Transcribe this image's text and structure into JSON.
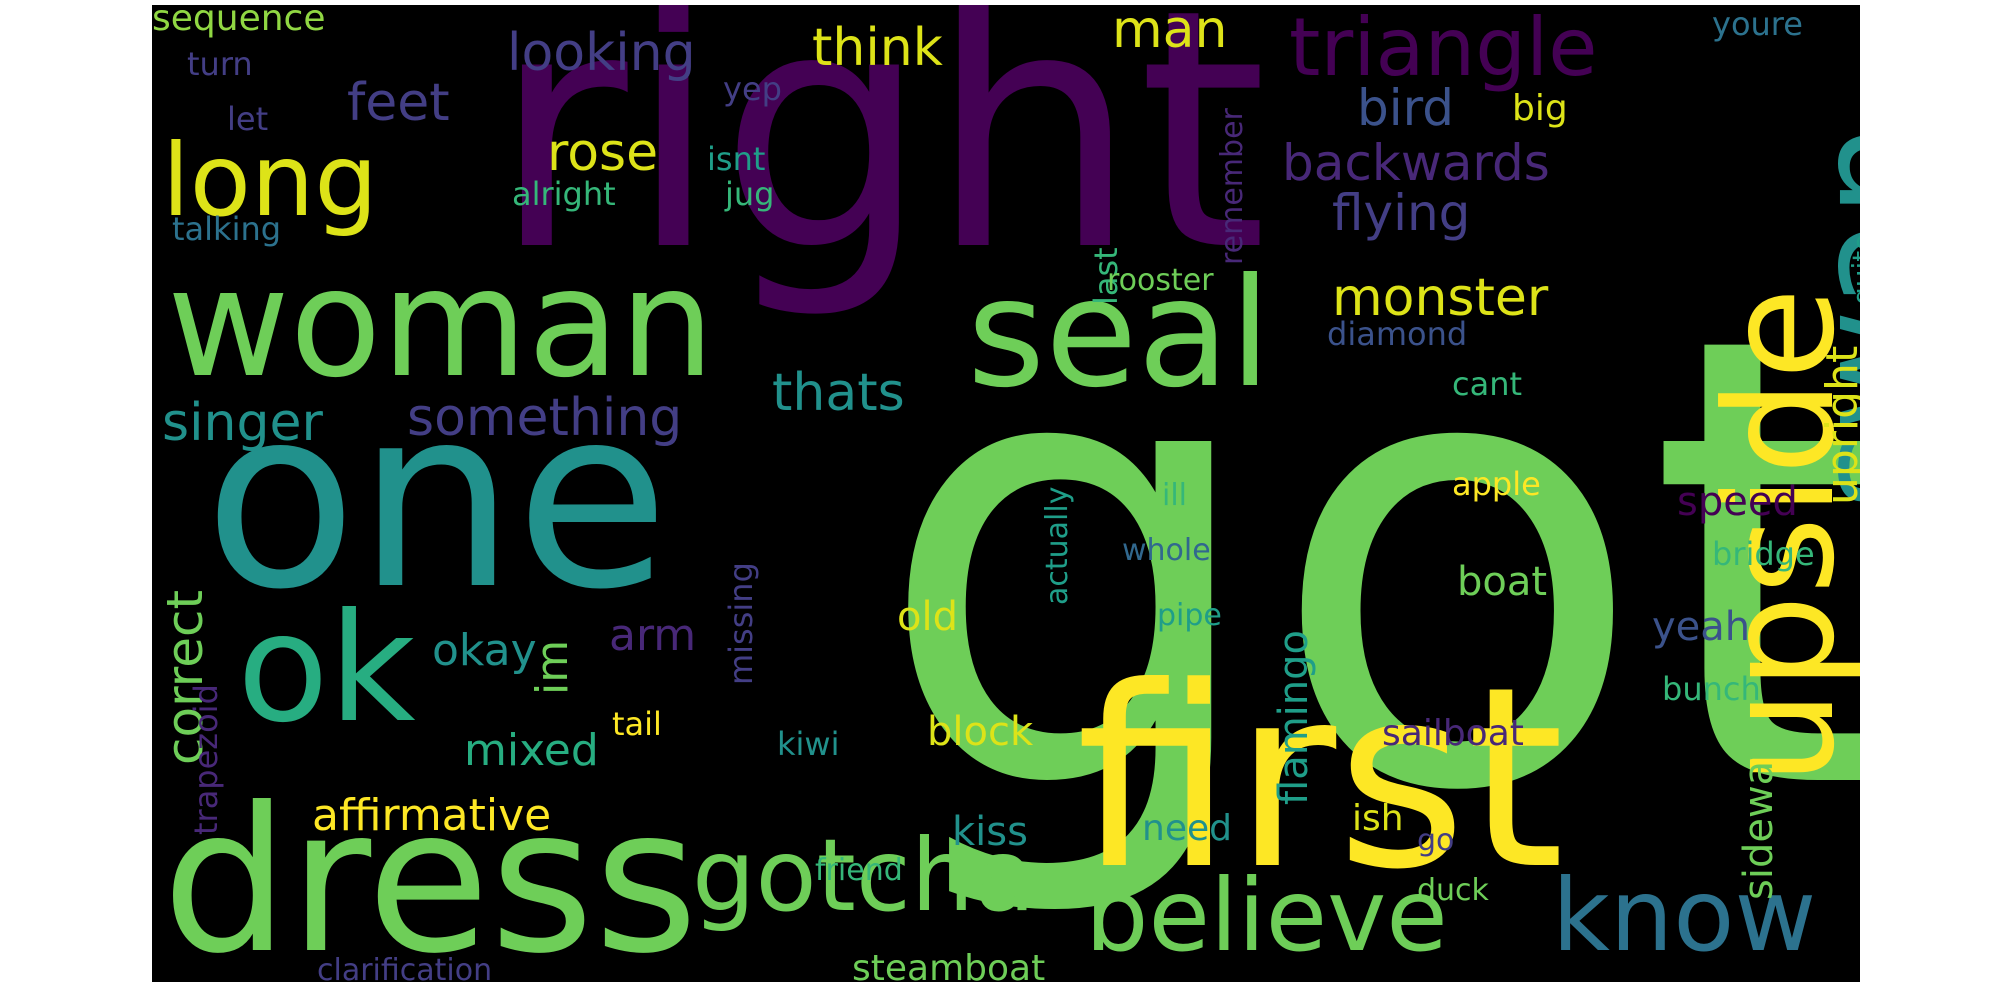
{
  "colors": {
    "background": "#000000",
    "page": "#ffffff",
    "palette": {
      "purple": "#440154",
      "indigo": "#482878",
      "violet": "#433e85",
      "blue": "#3b528b",
      "slate": "#31688e",
      "steel": "#2c728e",
      "teal": "#21918c",
      "sea": "#1f9e89",
      "jade": "#27ad81",
      "mint": "#35b779",
      "green": "#6ece58",
      "lime": "#90d743",
      "yellow": "#dde318",
      "gold": "#fde725"
    }
  },
  "words": [
    {
      "text": "got",
      "color": "green"
    },
    {
      "text": "right",
      "color": "purple"
    },
    {
      "text": "one",
      "color": "teal"
    },
    {
      "text": "first",
      "color": "gold"
    },
    {
      "text": "dress",
      "color": "green"
    },
    {
      "text": "woman",
      "color": "green"
    },
    {
      "text": "upside",
      "color": "gold"
    },
    {
      "text": "swan",
      "color": "teal"
    },
    {
      "text": "ok",
      "color": "jade"
    },
    {
      "text": "seal",
      "color": "green"
    },
    {
      "text": "long",
      "color": "yellow"
    },
    {
      "text": "gotcha",
      "color": "green"
    },
    {
      "text": "believe",
      "color": "green"
    },
    {
      "text": "know",
      "color": "steel"
    },
    {
      "text": "triangle",
      "color": "purple"
    },
    {
      "text": "looking",
      "color": "violet"
    },
    {
      "text": "think",
      "color": "yellow"
    },
    {
      "text": "man",
      "color": "yellow"
    },
    {
      "text": "sequence",
      "color": "lime"
    },
    {
      "text": "feet",
      "color": "violet"
    },
    {
      "text": "bird",
      "color": "blue"
    },
    {
      "text": "big",
      "color": "yellow"
    },
    {
      "text": "rose",
      "color": "yellow"
    },
    {
      "text": "backwards",
      "color": "indigo"
    },
    {
      "text": "flying",
      "color": "violet"
    },
    {
      "text": "monster",
      "color": "yellow"
    },
    {
      "text": "thats",
      "color": "teal"
    },
    {
      "text": "singer",
      "color": "teal"
    },
    {
      "text": "something",
      "color": "violet"
    },
    {
      "text": "upright",
      "color": "yellow"
    },
    {
      "text": "quite",
      "color": "sea"
    },
    {
      "text": "youre",
      "color": "steel"
    },
    {
      "text": "turn",
      "color": "violet"
    },
    {
      "text": "let",
      "color": "violet"
    },
    {
      "text": "yep",
      "color": "violet"
    },
    {
      "text": "isnt",
      "color": "sea"
    },
    {
      "text": "alright",
      "color": "mint"
    },
    {
      "text": "jug",
      "color": "mint"
    },
    {
      "text": "talking",
      "color": "steel"
    },
    {
      "text": "remember",
      "color": "indigo"
    },
    {
      "text": "last",
      "color": "mint"
    },
    {
      "text": "rooster",
      "color": "green"
    },
    {
      "text": "diamond",
      "color": "blue"
    },
    {
      "text": "cant",
      "color": "mint"
    },
    {
      "text": "apple",
      "color": "gold"
    },
    {
      "text": "speed",
      "color": "purple"
    },
    {
      "text": "bridge",
      "color": "mint"
    },
    {
      "text": "flamingo",
      "color": "sea"
    },
    {
      "text": "correct",
      "color": "green"
    },
    {
      "text": "okay",
      "color": "teal"
    },
    {
      "text": "im",
      "color": "green"
    },
    {
      "text": "arm",
      "color": "indigo"
    },
    {
      "text": "mixed",
      "color": "jade"
    },
    {
      "text": "affirmative",
      "color": "gold"
    },
    {
      "text": "trapezoid",
      "color": "indigo"
    },
    {
      "text": "missing",
      "color": "violet"
    },
    {
      "text": "actually",
      "color": "sea"
    },
    {
      "text": "ill",
      "color": "mint"
    },
    {
      "text": "whole",
      "color": "slate"
    },
    {
      "text": "pipe",
      "color": "sea"
    },
    {
      "text": "old",
      "color": "yellow"
    },
    {
      "text": "boat",
      "color": "green"
    },
    {
      "text": "yeah",
      "color": "blue"
    },
    {
      "text": "sideways",
      "color": "green"
    },
    {
      "text": "bunch",
      "color": "mint"
    },
    {
      "text": "tail",
      "color": "gold"
    },
    {
      "text": "block",
      "color": "yellow"
    },
    {
      "text": "sailboat",
      "color": "indigo"
    },
    {
      "text": "kiwi",
      "color": "teal"
    },
    {
      "text": "kiss",
      "color": "teal"
    },
    {
      "text": "need",
      "color": "teal"
    },
    {
      "text": "ish",
      "color": "yellow"
    },
    {
      "text": "go",
      "color": "violet"
    },
    {
      "text": "friend",
      "color": "mint"
    },
    {
      "text": "duck",
      "color": "green"
    },
    {
      "text": "clarification",
      "color": "violet"
    },
    {
      "text": "steamboat",
      "color": "green"
    }
  ]
}
